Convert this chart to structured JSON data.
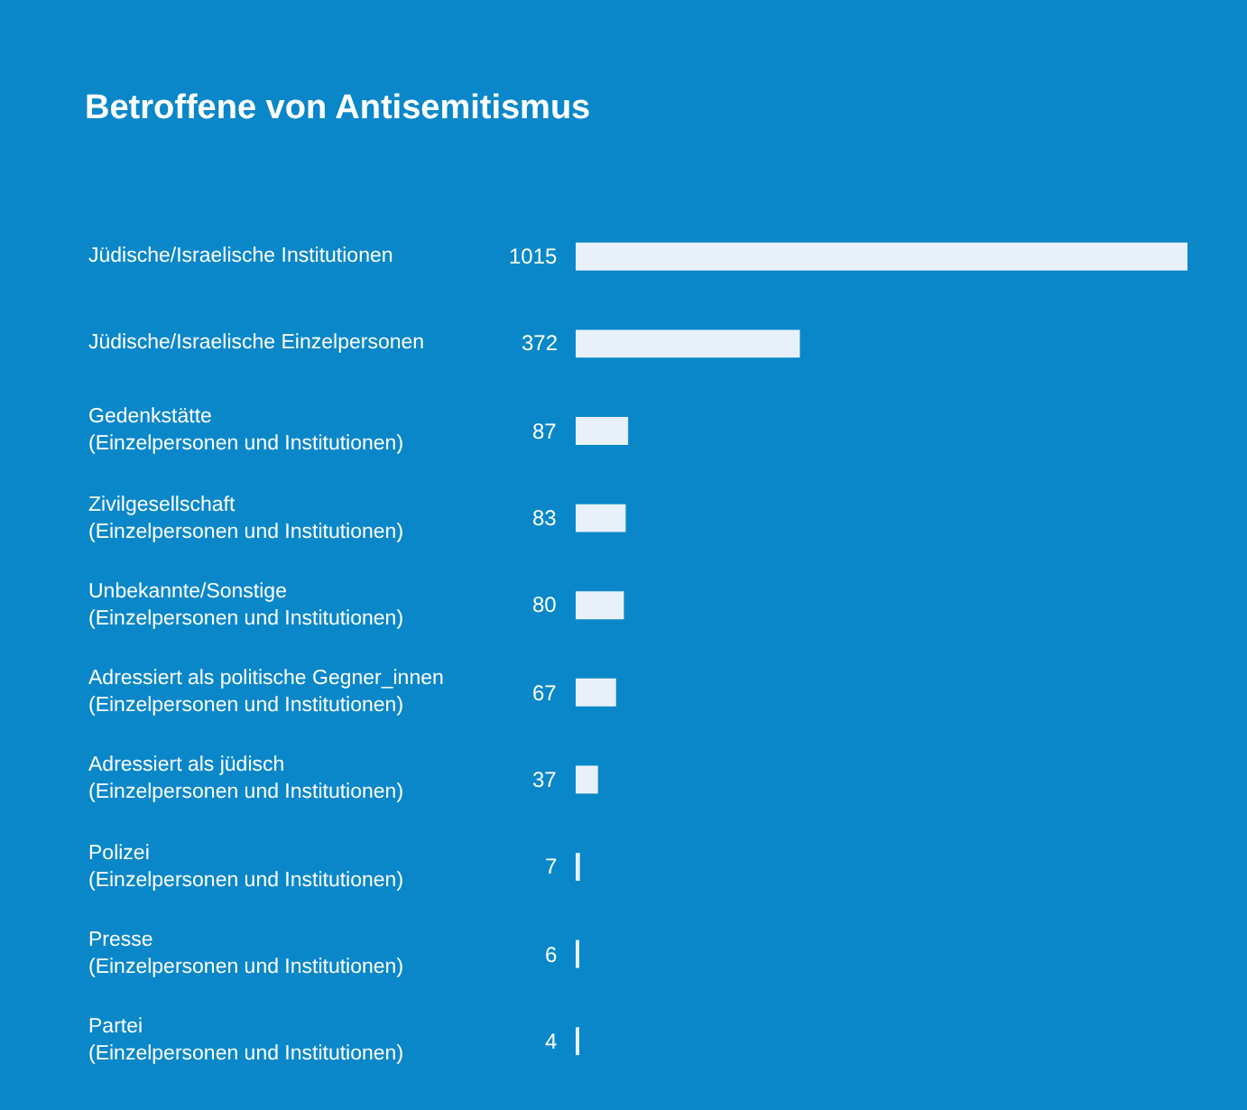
{
  "chart_data": {
    "type": "bar",
    "orientation": "horizontal",
    "title": "Betroffene von Antisemitismus",
    "categories": [
      "Jüdische/Israelische Institutionen",
      "Jüdische/Israelische Einzelpersonen",
      "Gedenkstätte\n(Einzelpersonen und Institutionen)",
      "Zivilgesellschaft\n(Einzelpersonen und Institutionen)",
      "Unbekannte/Sonstige\n(Einzelpersonen und Institutionen)",
      "Adressiert als politische Gegner_innen\n(Einzelpersonen und Institutionen)",
      "Adressiert als jüdisch\n(Einzelpersonen und Institutionen)",
      "Polizei\n(Einzelpersonen und Institutionen)",
      "Presse\n(Einzelpersonen und Institutionen)",
      "Partei\n(Einzelpersonen und Institutionen)"
    ],
    "values": [
      1015,
      372,
      87,
      83,
      80,
      67,
      37,
      7,
      6,
      4
    ],
    "color": "#e8f1fa",
    "data_labels": true,
    "grid": false,
    "legend": false
  }
}
